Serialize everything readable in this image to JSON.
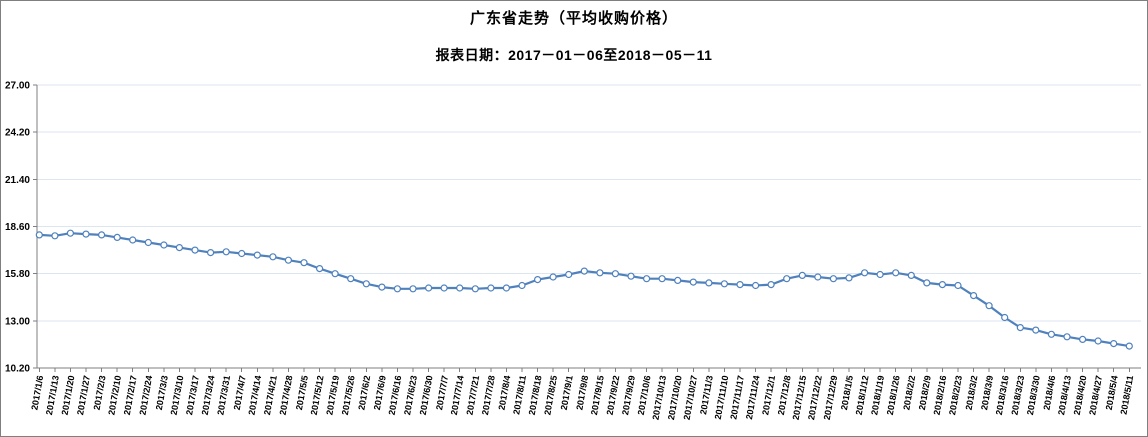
{
  "header": {
    "title": "广东省走势（平均收购价格）",
    "subtitle": "报表日期：2017－01－06至2018－05－11"
  },
  "chart_data": {
    "type": "line",
    "title": "广东省走势（平均收购价格）",
    "subtitle": "报表日期：2017－01－06至2018－05－11",
    "legend_position": "none",
    "grid": "horizontal",
    "ylim": [
      10.2,
      27.0
    ],
    "ytick_step": 2.8,
    "ytick_labels": [
      "27.00",
      "24.20",
      "21.40",
      "18.60",
      "15.80",
      "13.00",
      "10.20"
    ],
    "colors": {
      "line": "#4F81BD",
      "marker_fill": "#FFFFFF",
      "grid": "#DCE6F1",
      "axis": "#7F7F7F",
      "text": "#000000"
    },
    "marker": "open-circle",
    "categories": [
      "2017/1/6",
      "2017/1/13",
      "2017/1/20",
      "2017/1/27",
      "2017/2/3",
      "2017/2/10",
      "2017/2/17",
      "2017/2/24",
      "2017/3/3",
      "2017/3/10",
      "2017/3/17",
      "2017/3/24",
      "2017/3/31",
      "2017/4/7",
      "2017/4/14",
      "2017/4/21",
      "2017/4/28",
      "2017/5/5",
      "2017/5/12",
      "2017/5/19",
      "2017/5/26",
      "2017/6/2",
      "2017/6/9",
      "2017/6/16",
      "2017/6/23",
      "2017/6/30",
      "2017/7/7",
      "2017/7/14",
      "2017/7/21",
      "2017/7/28",
      "2017/8/4",
      "2017/8/11",
      "2017/8/18",
      "2017/8/25",
      "2017/9/1",
      "2017/9/8",
      "2017/9/15",
      "2017/9/22",
      "2017/9/29",
      "2017/10/6",
      "2017/10/13",
      "2017/10/20",
      "2017/10/27",
      "2017/11/3",
      "2017/11/10",
      "2017/11/17",
      "2017/11/24",
      "2017/12/1",
      "2017/12/8",
      "2017/12/15",
      "2017/12/22",
      "2017/12/29",
      "2018/1/5",
      "2018/1/12",
      "2018/1/19",
      "2018/1/26",
      "2018/2/2",
      "2018/2/9",
      "2018/2/16",
      "2018/2/23",
      "2018/3/2",
      "2018/3/9",
      "2018/3/16",
      "2018/3/23",
      "2018/3/30",
      "2018/4/6",
      "2018/4/13",
      "2018/4/20",
      "2018/4/27",
      "2018/5/4",
      "2018/5/11"
    ],
    "series": [
      {
        "name": "平均收购价格",
        "values": [
          18.1,
          18.05,
          18.2,
          18.15,
          18.1,
          17.95,
          17.8,
          17.65,
          17.5,
          17.35,
          17.2,
          17.05,
          17.1,
          17.0,
          16.9,
          16.8,
          16.6,
          16.45,
          16.1,
          15.8,
          15.5,
          15.2,
          15.0,
          14.9,
          14.9,
          14.95,
          14.95,
          14.95,
          14.9,
          14.95,
          14.95,
          15.1,
          15.45,
          15.6,
          15.75,
          15.95,
          15.85,
          15.8,
          15.65,
          15.5,
          15.5,
          15.4,
          15.3,
          15.25,
          15.2,
          15.15,
          15.1,
          15.15,
          15.5,
          15.7,
          15.6,
          15.5,
          15.55,
          15.85,
          15.75,
          15.85,
          15.7,
          15.25,
          15.15,
          15.1,
          14.5,
          13.9,
          13.2,
          12.6,
          12.45,
          12.2,
          12.05,
          11.9,
          11.8,
          11.65,
          11.5
        ]
      }
    ]
  }
}
